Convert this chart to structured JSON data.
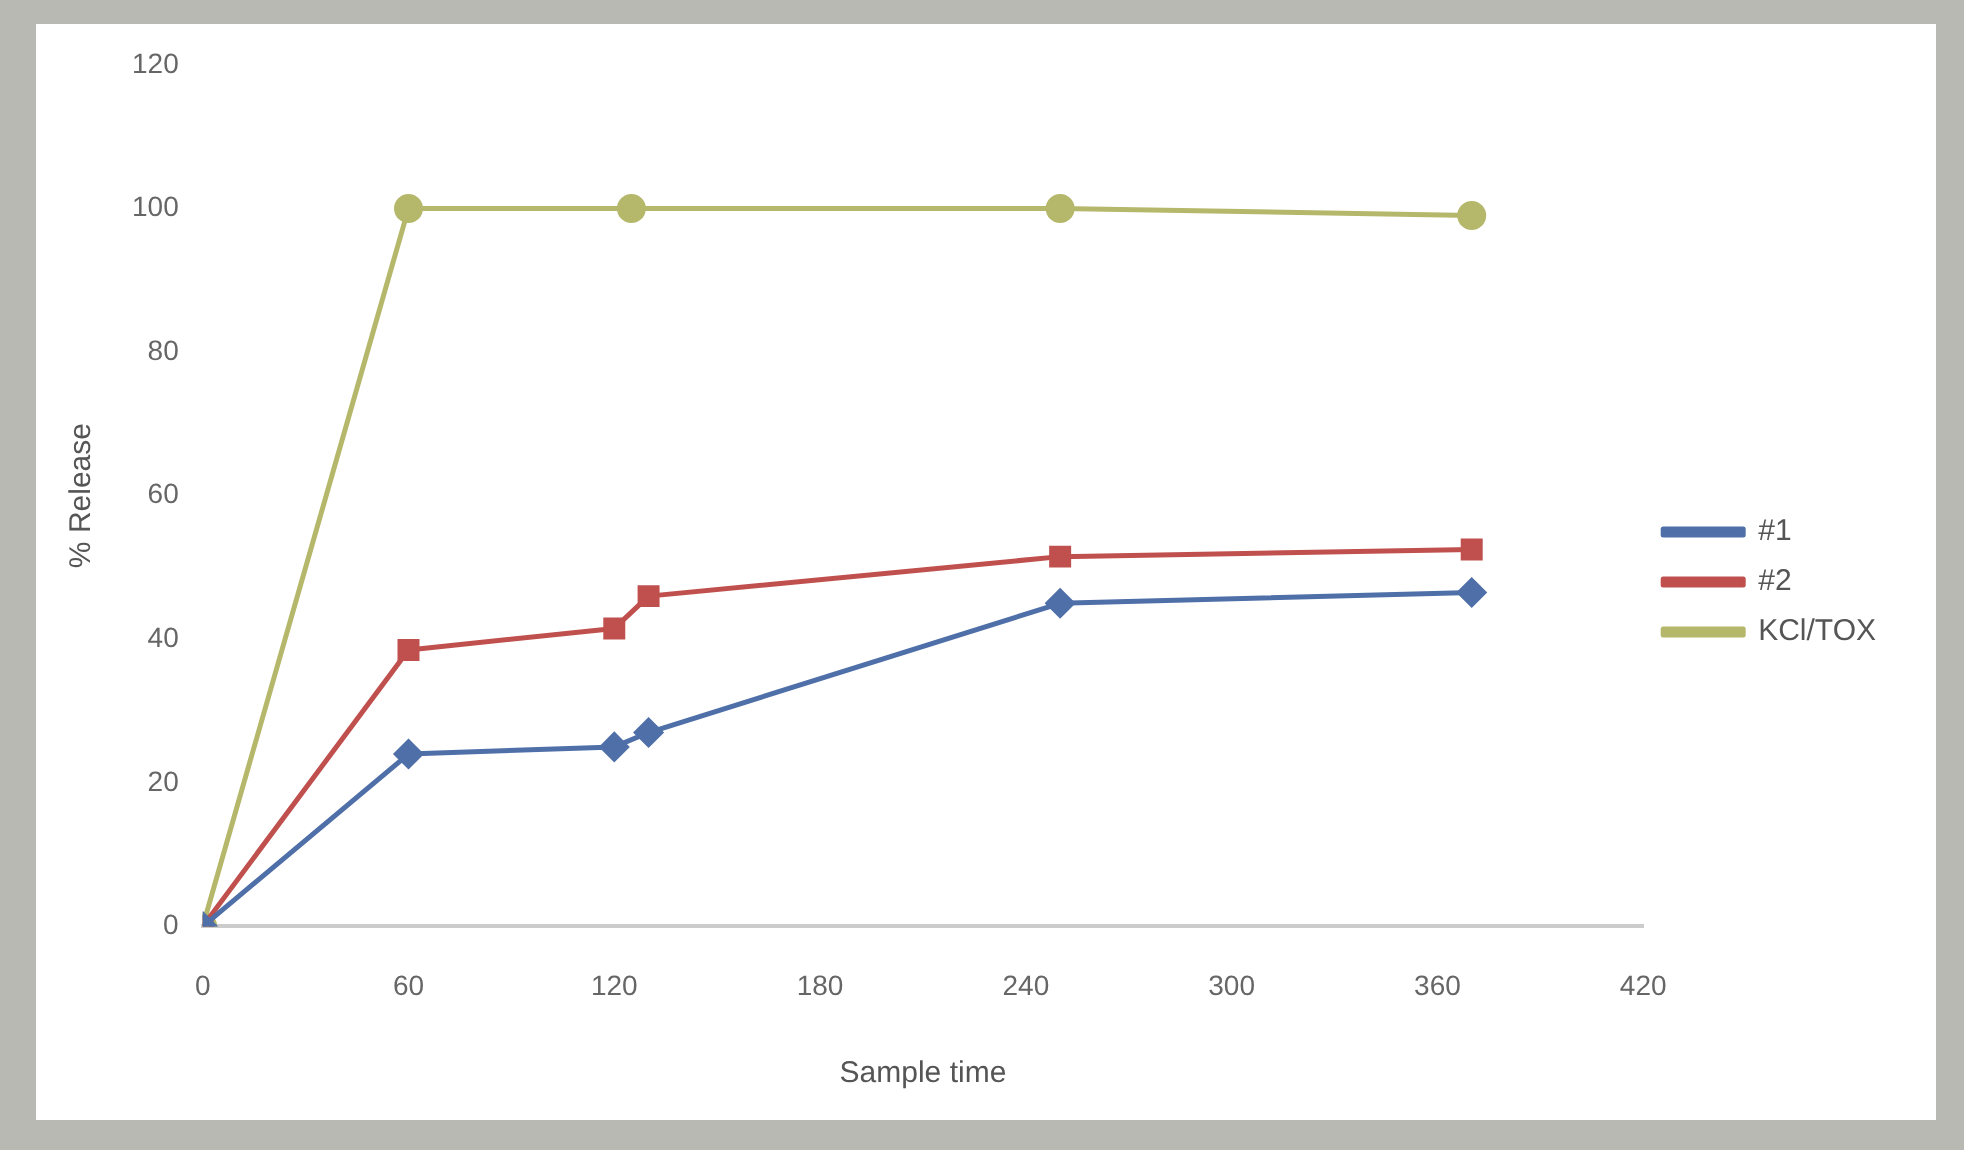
{
  "chart_data": {
    "type": "line",
    "xlabel": "Sample time",
    "ylabel": "% Release",
    "xlim": [
      0,
      420
    ],
    "xticks": [
      0,
      60,
      120,
      180,
      240,
      300,
      360,
      420
    ],
    "ylim": [
      0,
      120
    ],
    "yticks": [
      0,
      20,
      40,
      60,
      80,
      100,
      120
    ],
    "grid": false,
    "legend": "right",
    "series": [
      {
        "name": "#1",
        "color": "#4f6fa8",
        "marker": "diamond",
        "x": [
          0,
          60,
          120,
          130,
          250,
          370
        ],
        "values": [
          0,
          24,
          25,
          27,
          45,
          46.5
        ]
      },
      {
        "name": "#2",
        "color": "#c0504d",
        "marker": "square",
        "x": [
          0,
          60,
          120,
          130,
          250,
          370
        ],
        "values": [
          0,
          38.5,
          41.5,
          46,
          51.5,
          52.5
        ]
      },
      {
        "name": "KCl/TOX",
        "color": "#b5b86a",
        "marker": "circle",
        "x": [
          0,
          60,
          125,
          250,
          370
        ],
        "values": [
          0,
          100,
          100,
          100,
          99
        ]
      }
    ]
  }
}
